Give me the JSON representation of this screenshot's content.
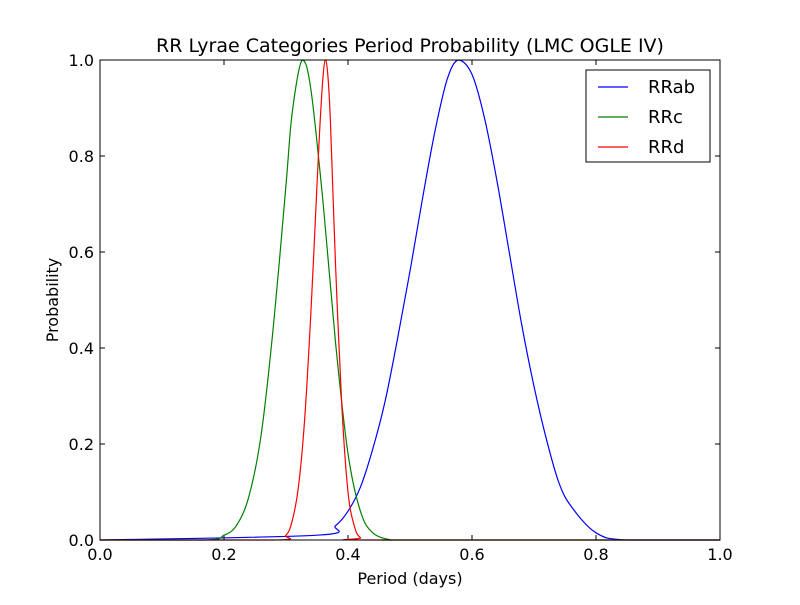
{
  "chart_data": {
    "type": "line",
    "title": "RR Lyrae Categories Period Probability (LMC OGLE IV)",
    "xlabel": "Period (days)",
    "ylabel": "Probability",
    "xlim": [
      0.0,
      1.0
    ],
    "ylim": [
      0.0,
      1.0
    ],
    "xticks": [
      "0.0",
      "0.2",
      "0.4",
      "0.6",
      "0.8",
      "1.0"
    ],
    "yticks": [
      "0.0",
      "0.2",
      "0.4",
      "0.6",
      "0.8",
      "1.0"
    ],
    "grid": false,
    "legend_position": "top-right",
    "series": [
      {
        "name": "RRab",
        "color": "#0000ff",
        "x": [
          0.0,
          0.35,
          0.38,
          0.4,
          0.42,
          0.44,
          0.46,
          0.48,
          0.5,
          0.52,
          0.54,
          0.56,
          0.578,
          0.6,
          0.62,
          0.64,
          0.66,
          0.68,
          0.7,
          0.72,
          0.74,
          0.76,
          0.8,
          0.85,
          1.0
        ],
        "y": [
          0.0,
          0.01,
          0.03,
          0.06,
          0.11,
          0.19,
          0.29,
          0.42,
          0.56,
          0.71,
          0.85,
          0.96,
          1.0,
          0.97,
          0.88,
          0.75,
          0.6,
          0.45,
          0.32,
          0.21,
          0.12,
          0.07,
          0.015,
          0.0,
          0.0
        ]
      },
      {
        "name": "RRc",
        "color": "#008000",
        "x": [
          0.0,
          0.17,
          0.2,
          0.22,
          0.24,
          0.26,
          0.28,
          0.3,
          0.31,
          0.326,
          0.34,
          0.36,
          0.38,
          0.4,
          0.42,
          0.44,
          0.47,
          0.5,
          1.0
        ],
        "y": [
          0.0,
          0.0,
          0.01,
          0.03,
          0.09,
          0.22,
          0.45,
          0.74,
          0.89,
          1.0,
          0.94,
          0.7,
          0.41,
          0.18,
          0.06,
          0.015,
          0.0,
          0.0,
          0.0
        ],
        "y_scale_note": ""
      },
      {
        "name": "RRd",
        "color": "#ff0000",
        "x": [
          0.0,
          0.28,
          0.3,
          0.31,
          0.32,
          0.33,
          0.34,
          0.35,
          0.355,
          0.36,
          0.364,
          0.368,
          0.372,
          0.38,
          0.39,
          0.4,
          0.41,
          0.42,
          0.44,
          1.0
        ],
        "y": [
          0.0,
          0.0,
          0.01,
          0.04,
          0.11,
          0.25,
          0.47,
          0.74,
          0.87,
          0.97,
          1.0,
          0.96,
          0.86,
          0.57,
          0.28,
          0.1,
          0.03,
          0.005,
          0.0,
          0.0
        ]
      }
    ]
  }
}
